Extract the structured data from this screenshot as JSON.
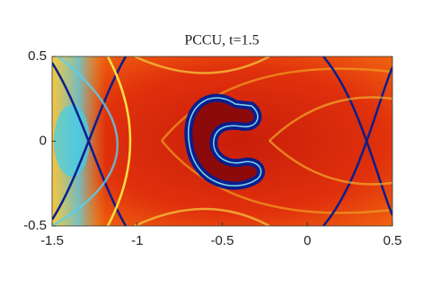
{
  "chart_data": {
    "type": "image",
    "title": "PCCU, t=1.5",
    "xlim": [
      -1.5,
      0.5
    ],
    "xticks": [
      -1.5,
      -1,
      -0.5,
      0,
      0.5
    ],
    "ylim": [
      -0.5,
      0.5
    ],
    "yticks": [
      -0.5,
      0,
      0.5
    ]
  }
}
